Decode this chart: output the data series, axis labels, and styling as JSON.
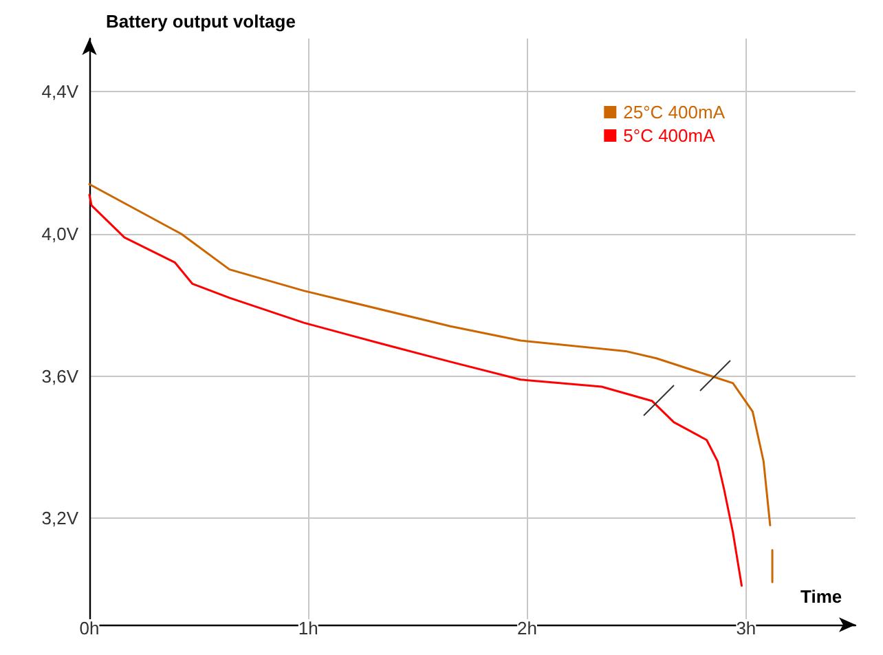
{
  "chart_data": {
    "type": "line",
    "ylabel": "Battery output voltage",
    "xlabel": "Time",
    "xlim": [
      0,
      3.5
    ],
    "xticks": [
      {
        "value": 0,
        "label": "0h"
      },
      {
        "value": 1,
        "label": "1h"
      },
      {
        "value": 2,
        "label": "2h"
      },
      {
        "value": 3,
        "label": "3h"
      }
    ],
    "ylim": [
      2.9,
      4.55
    ],
    "yticks": [
      {
        "value": 3.2,
        "label": "3,2V"
      },
      {
        "value": 3.6,
        "label": "3,6V"
      },
      {
        "value": 4.0,
        "label": "4,0V"
      },
      {
        "value": 4.4,
        "label": "4,4V"
      }
    ],
    "grid": true,
    "legend": "top right",
    "marker": "none",
    "line_style": "solid",
    "series": [
      {
        "name": "25°C 400mA",
        "color": "#cc6600",
        "x": [
          0,
          0.42,
          0.64,
          0.98,
          1.65,
          1.97,
          2.45,
          2.59,
          2.84,
          2.94,
          3.03,
          3.08,
          3.11,
          3.115,
          3.12,
          3.12
        ],
        "values": [
          4.14,
          4.0,
          3.9,
          3.84,
          3.74,
          3.7,
          3.67,
          3.65,
          3.6,
          3.58,
          3.5,
          3.36,
          3.18,
          null,
          3.11,
          3.02
        ]
      },
      {
        "name": "5°C 400mA",
        "color": "#ff0000",
        "x": [
          0,
          0.01,
          0.16,
          0.39,
          0.47,
          0.64,
          0.98,
          1.34,
          1.65,
          1.97,
          2.34,
          2.57,
          2.67,
          2.82,
          2.87,
          2.9,
          2.94,
          2.98
        ],
        "values": [
          4.11,
          4.08,
          3.99,
          3.92,
          3.86,
          3.82,
          3.75,
          3.69,
          3.64,
          3.59,
          3.57,
          3.53,
          3.47,
          3.42,
          3.36,
          3.28,
          3.16,
          3.01
        ]
      }
    ]
  }
}
